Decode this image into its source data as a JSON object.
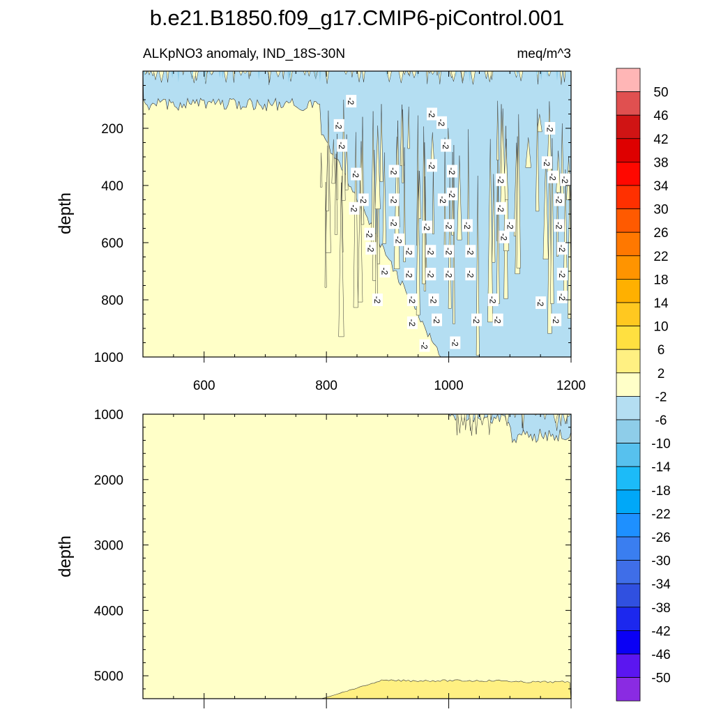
{
  "chart_data": {
    "type": "contour",
    "title": "b.e21.B1850.f09_g17.CMIP6-piControl.001",
    "subtitle_left": "ALKpNO3 anomaly, IND_18S-30N",
    "subtitle_right": "meq/m^3",
    "xlim": [
      500,
      1200
    ],
    "x_ticks": [
      600,
      800,
      1000,
      1200
    ],
    "ylabel": "depth",
    "upper_panel": {
      "ylim": [
        1000,
        0
      ],
      "y_ticks": [
        200,
        400,
        600,
        800,
        1000
      ]
    },
    "lower_panel": {
      "ylim": [
        5350,
        1000
      ],
      "y_ticks": [
        1000,
        2000,
        3000,
        4000,
        5000
      ]
    },
    "contour_label": "-2",
    "colorbar": {
      "levels": [
        -50,
        -46,
        -42,
        -38,
        -34,
        -30,
        -26,
        -22,
        -18,
        -14,
        -10,
        -6,
        -2,
        2,
        6,
        10,
        14,
        18,
        22,
        26,
        30,
        34,
        38,
        42,
        46,
        50
      ],
      "colors": [
        "#8a2be2",
        "#5b16f0",
        "#0a00f5",
        "#1c28ee",
        "#3050e0",
        "#3f6ee8",
        "#3a7ef0",
        "#1e90ff",
        "#00a8f8",
        "#1cbbf8",
        "#57c1ee",
        "#8ecde9",
        "#b4def2",
        "#ffffc8",
        "#fff082",
        "#ffe040",
        "#ffc820",
        "#ffb000",
        "#ff9400",
        "#ff7800",
        "#ff5a00",
        "#ff3000",
        "#ff0800",
        "#de0000",
        "#d01414",
        "#e05050",
        "#ffb6b6"
      ]
    }
  }
}
